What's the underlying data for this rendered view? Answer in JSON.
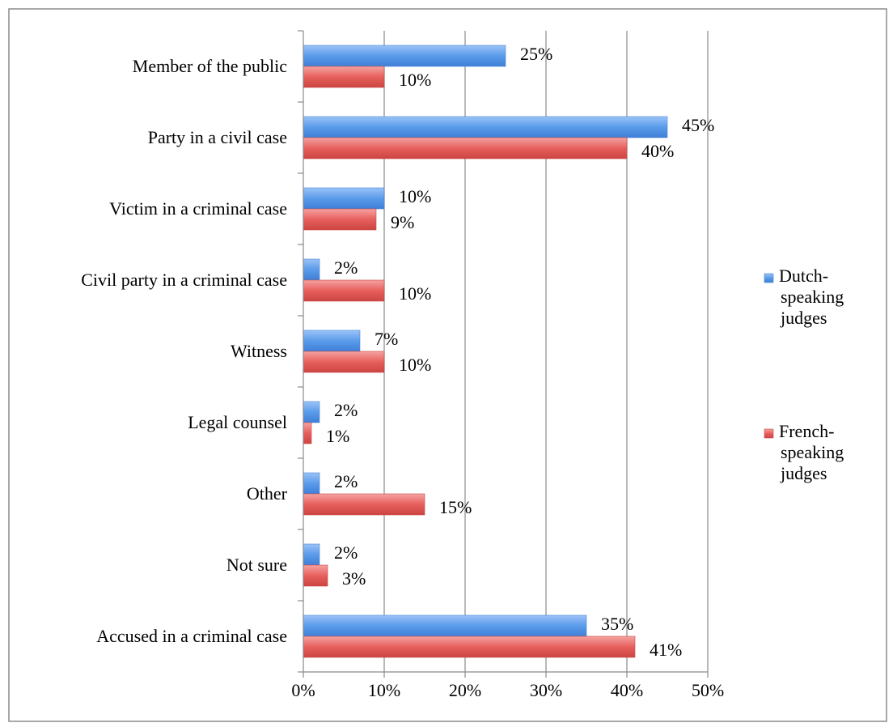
{
  "chart_data": {
    "type": "bar",
    "orientation": "horizontal",
    "categories": [
      "Member of the public",
      "Party in a civil case",
      "Victim in a criminal case",
      "Civil party in a criminal case",
      "Witness",
      "Legal counsel",
      "Other",
      "Not sure",
      "Accused in a criminal case"
    ],
    "series": [
      {
        "name": "Dutch-speaking judges",
        "legend_lines": [
          "Dutch-",
          "speaking",
          "judges"
        ],
        "color": "#5B9BEB",
        "values": [
          25,
          45,
          10,
          2,
          7,
          2,
          2,
          2,
          35
        ],
        "labels": [
          "25%",
          "45%",
          "10%",
          "2%",
          "7%",
          "2%",
          "2%",
          "2%",
          "35%"
        ]
      },
      {
        "name": "French-speaking judges",
        "legend_lines": [
          "French-",
          "speaking",
          "judges"
        ],
        "color": "#E8605E",
        "values": [
          10,
          40,
          9,
          10,
          10,
          1,
          15,
          3,
          41
        ],
        "labels": [
          "10%",
          "40%",
          "9%",
          "10%",
          "10%",
          "1%",
          "15%",
          "3%",
          "41%"
        ]
      }
    ],
    "x_ticks": [
      "0%",
      "10%",
      "20%",
      "30%",
      "40%",
      "50%"
    ],
    "xlim": [
      0,
      50
    ],
    "grid": true,
    "legend": "right",
    "title": "",
    "xlabel": "",
    "ylabel": ""
  }
}
